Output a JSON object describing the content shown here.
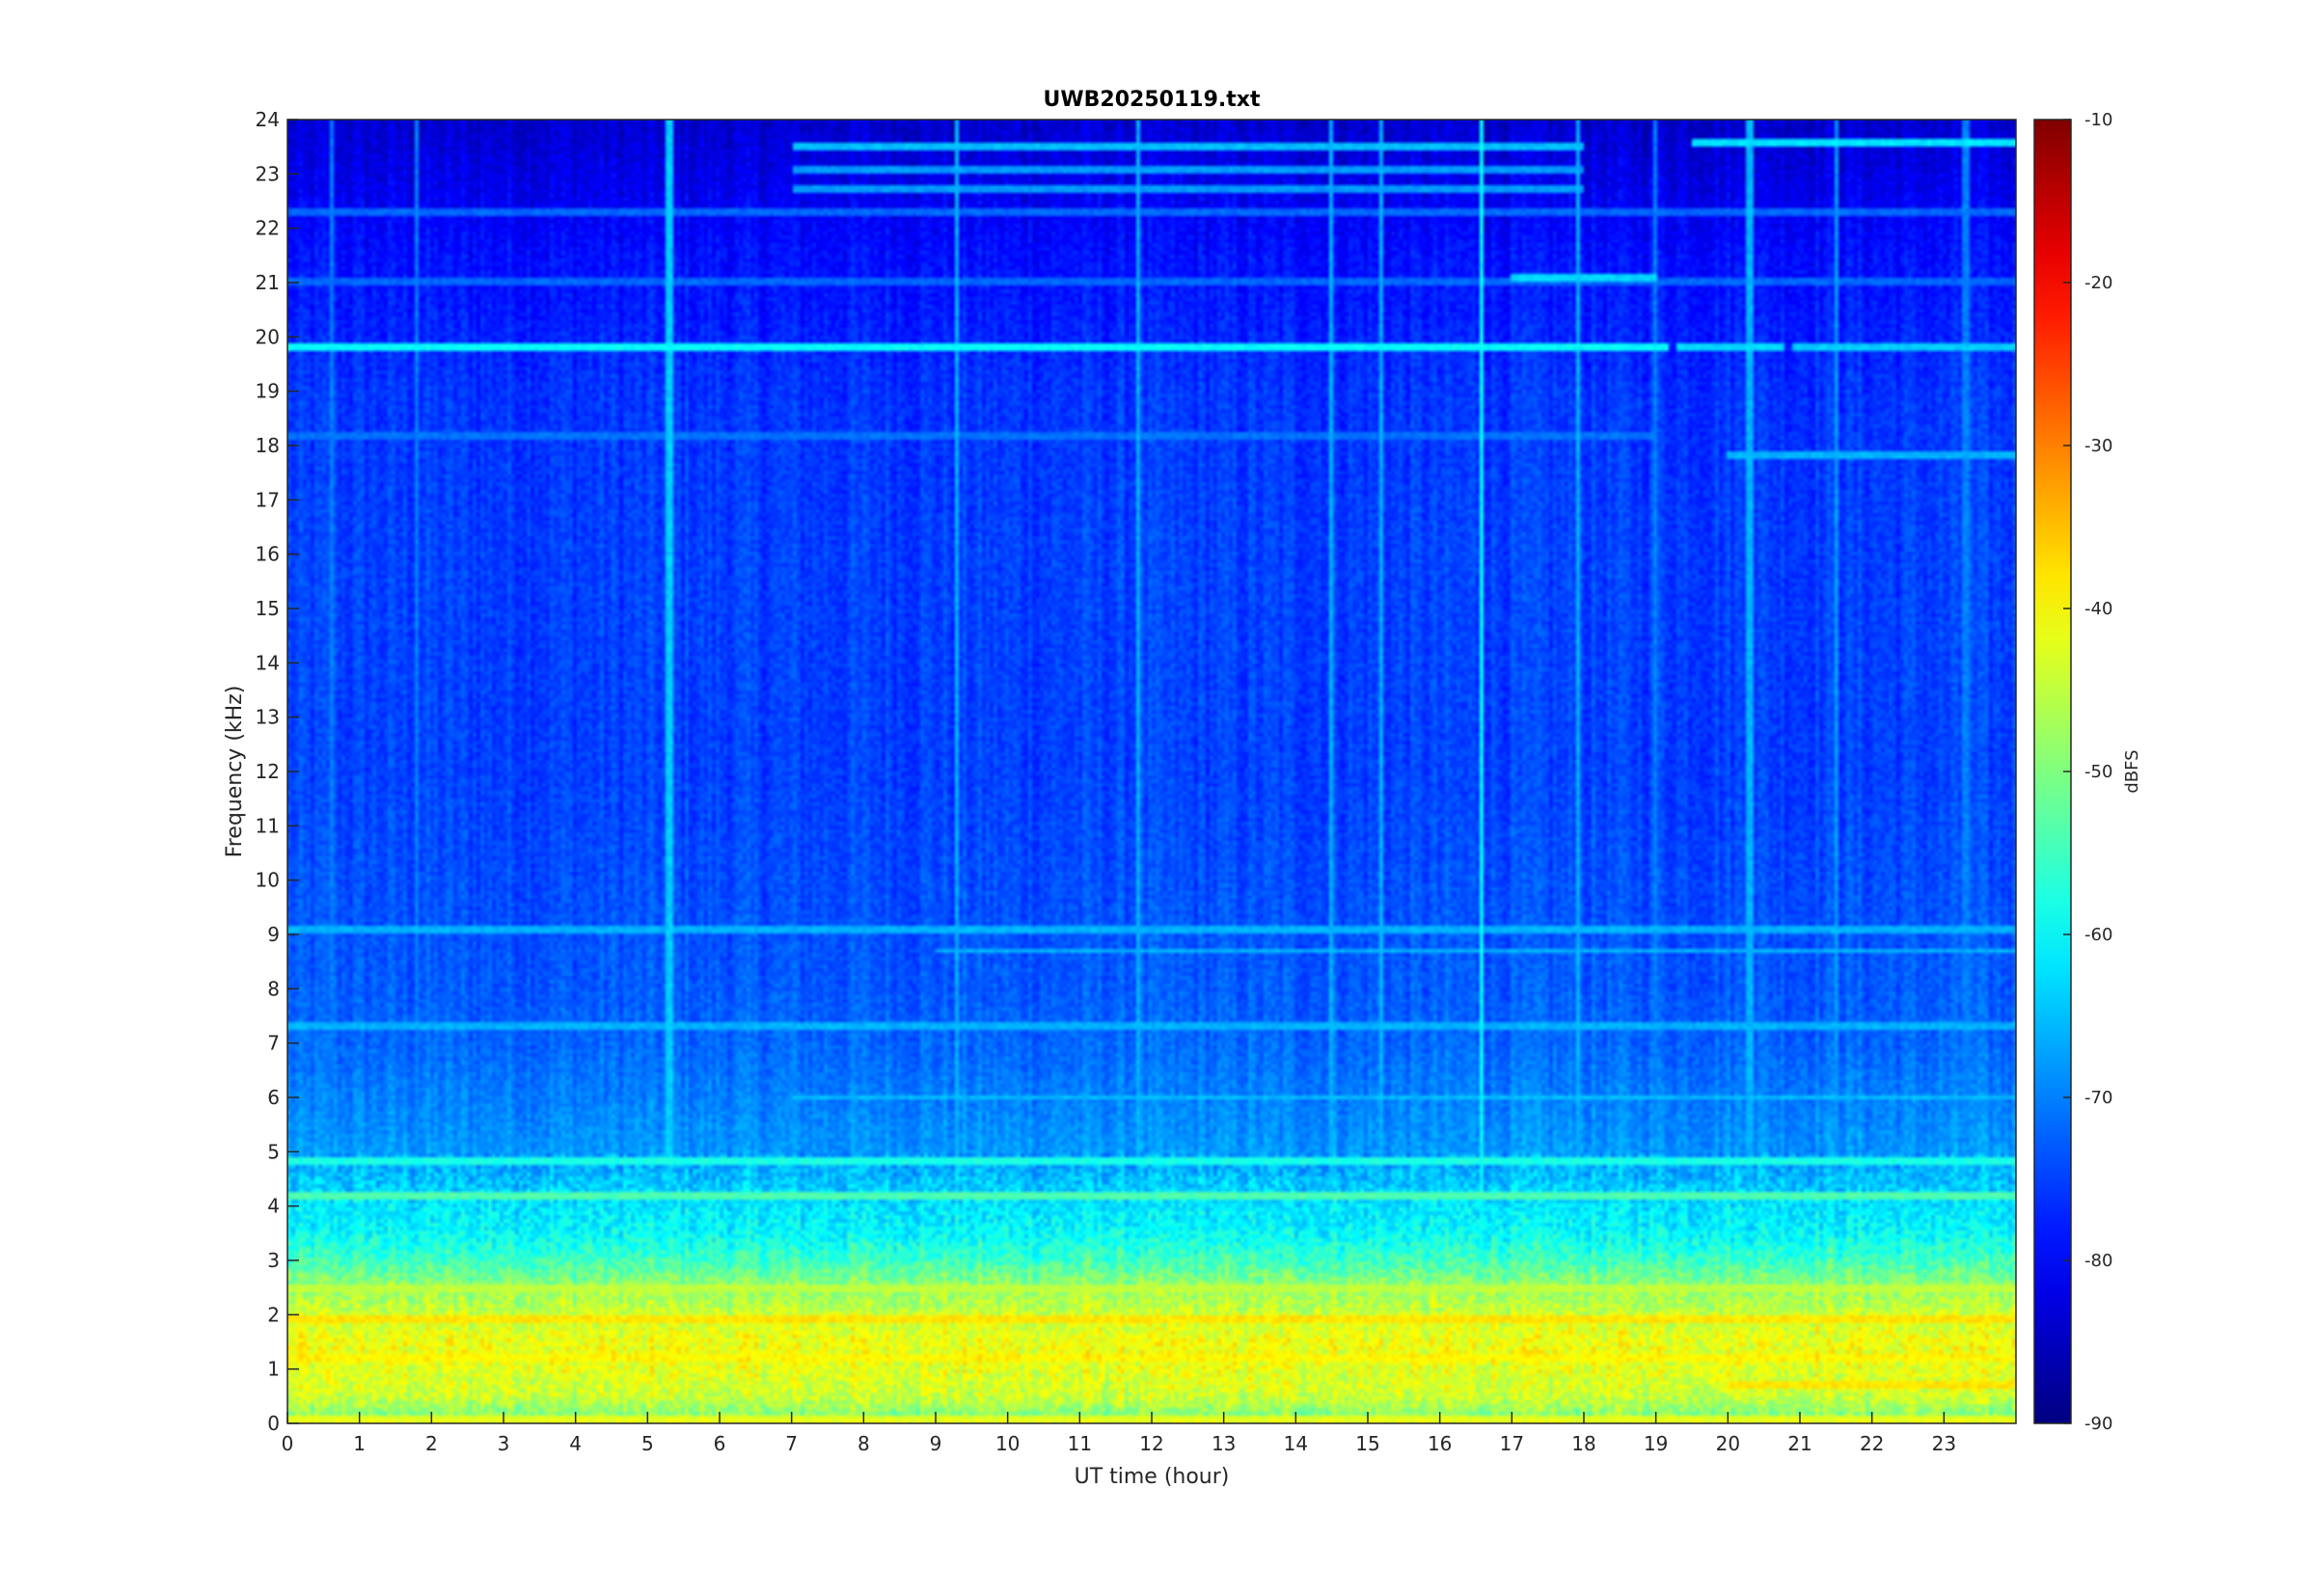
{
  "chart_data": {
    "type": "heatmap",
    "title": "UWB20250119.txt",
    "xlabel": "UT time (hour)",
    "ylabel": "Frequency (kHz)",
    "colorbar_label": "dBFS",
    "xlim": [
      0,
      24
    ],
    "ylim": [
      0,
      24
    ],
    "clim": [
      -90,
      -10
    ],
    "colormap": "jet",
    "x_ticks": [
      0,
      1,
      2,
      3,
      4,
      5,
      6,
      7,
      8,
      9,
      10,
      11,
      12,
      13,
      14,
      15,
      16,
      17,
      18,
      19,
      20,
      21,
      22,
      23
    ],
    "y_ticks": [
      0,
      1,
      2,
      3,
      4,
      5,
      6,
      7,
      8,
      9,
      10,
      11,
      12,
      13,
      14,
      15,
      16,
      17,
      18,
      19,
      20,
      21,
      22,
      23,
      24
    ],
    "colorbar_ticks": [
      -90,
      -80,
      -70,
      -60,
      -50,
      -40,
      -30,
      -20,
      -10
    ],
    "grid": false,
    "background_profile": [
      {
        "f": 0,
        "db": -52
      },
      {
        "f": 0.5,
        "db": -44
      },
      {
        "f": 1,
        "db": -42
      },
      {
        "f": 1.5,
        "db": -41
      },
      {
        "f": 2,
        "db": -44
      },
      {
        "f": 2.5,
        "db": -48
      },
      {
        "f": 3,
        "db": -55
      },
      {
        "f": 3.5,
        "db": -60
      },
      {
        "f": 4,
        "db": -62
      },
      {
        "f": 4.5,
        "db": -65
      },
      {
        "f": 5,
        "db": -68
      },
      {
        "f": 6,
        "db": -70
      },
      {
        "f": 7,
        "db": -72
      },
      {
        "f": 8,
        "db": -73
      },
      {
        "f": 10,
        "db": -74
      },
      {
        "f": 12,
        "db": -75
      },
      {
        "f": 16,
        "db": -75
      },
      {
        "f": 19,
        "db": -76
      },
      {
        "f": 20.5,
        "db": -78
      },
      {
        "f": 21.5,
        "db": -79
      },
      {
        "f": 24,
        "db": -84
      }
    ],
    "horizontal_lines": [
      {
        "freq": 19.8,
        "t_start": 0,
        "t_end": 19.2,
        "db": -60
      },
      {
        "freq": 19.8,
        "t_start": 19.3,
        "t_end": 20.8,
        "db": -63
      },
      {
        "freq": 19.8,
        "t_start": 20.9,
        "t_end": 24,
        "db": -64
      },
      {
        "freq": 22.3,
        "t_start": 0,
        "t_end": 24,
        "db": -72
      },
      {
        "freq": 21.0,
        "t_start": 0,
        "t_end": 24,
        "db": -72
      },
      {
        "freq": 21.1,
        "t_start": 17,
        "t_end": 19,
        "db": -63
      },
      {
        "freq": 18.2,
        "t_start": 0,
        "t_end": 19,
        "db": -71
      },
      {
        "freq": 17.8,
        "t_start": 20,
        "t_end": 24,
        "db": -66
      },
      {
        "freq": 23.5,
        "t_start": 7,
        "t_end": 18,
        "db": -65
      },
      {
        "freq": 23.1,
        "t_start": 7,
        "t_end": 18,
        "db": -68
      },
      {
        "freq": 22.7,
        "t_start": 7,
        "t_end": 18,
        "db": -68
      },
      {
        "freq": 23.6,
        "t_start": 19.5,
        "t_end": 24,
        "db": -62
      },
      {
        "freq": 9.1,
        "t_start": 0,
        "t_end": 24,
        "db": -66
      },
      {
        "freq": 8.7,
        "t_start": 9,
        "t_end": 24,
        "db": -66
      },
      {
        "freq": 7.3,
        "t_start": 0,
        "t_end": 24,
        "db": -66
      },
      {
        "freq": 6.0,
        "t_start": 7,
        "t_end": 24,
        "db": -65
      },
      {
        "freq": 4.8,
        "t_start": 0,
        "t_end": 24,
        "db": -58
      },
      {
        "freq": 4.2,
        "t_start": 0,
        "t_end": 24,
        "db": -54
      },
      {
        "freq": 2.5,
        "t_start": 0,
        "t_end": 24,
        "db": -45
      },
      {
        "freq": 1.9,
        "t_start": 0,
        "t_end": 24,
        "db": -38
      },
      {
        "freq": 1.2,
        "t_start": 0,
        "t_end": 24,
        "db": -40
      },
      {
        "freq": 0.7,
        "t_start": 20,
        "t_end": 24,
        "db": -38
      },
      {
        "freq": 0.05,
        "t_start": 0,
        "t_end": 24,
        "db": -42
      }
    ],
    "vertical_lines": [
      {
        "t": 0.6,
        "db": -70
      },
      {
        "t": 1.8,
        "db": -70
      },
      {
        "t": 5.3,
        "db": -64
      },
      {
        "t": 9.3,
        "db": -66
      },
      {
        "t": 11.8,
        "db": -66
      },
      {
        "t": 14.5,
        "db": -66
      },
      {
        "t": 15.2,
        "db": -66
      },
      {
        "t": 16.6,
        "db": -60
      },
      {
        "t": 17.9,
        "db": -66
      },
      {
        "t": 19.0,
        "db": -70
      },
      {
        "t": 20.3,
        "db": -66
      },
      {
        "t": 21.5,
        "db": -68
      },
      {
        "t": 23.3,
        "db": -70
      }
    ]
  }
}
